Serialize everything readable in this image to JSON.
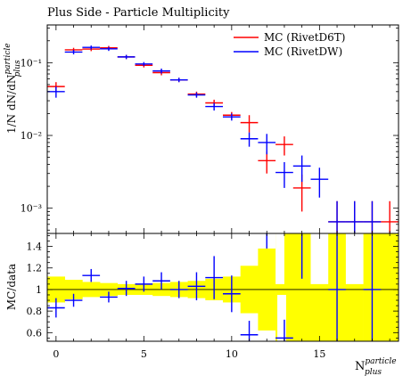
{
  "chart_data": {
    "type": "scatter",
    "title": "Plus Side - Particle Multiplicity",
    "xlabel_main": "N",
    "xlabel_sup": "particle",
    "xlabel_sub": "plus",
    "ylabel_top": "1/N dN/dN",
    "ylabel_top_sup": "particle",
    "ylabel_top_sub": "plus",
    "ylabel_bottom": "MC/data",
    "x_ticks": [
      "0",
      "5",
      "10",
      "15"
    ],
    "y_ticks_top": [
      "10⁻¹",
      "10⁻²",
      "10⁻³"
    ],
    "y_ticks_bottom": [
      "1.4",
      "1.2",
      "1",
      "0.8",
      "0.6"
    ],
    "top_ylim": [
      0.00045,
      0.33
    ],
    "bottom_ylim": [
      0.52,
      1.52
    ],
    "xlim": [
      -0.5,
      19.5
    ],
    "log_y_top": true,
    "legend_position": "top-right",
    "legend": [
      {
        "label": "MC (RivetD6T)",
        "color": "#ff0000"
      },
      {
        "label": "MC (RivetDW)",
        "color": "#0000ff"
      }
    ],
    "series": [
      {
        "name": "MC (RivetD6T)",
        "color": "#ff0000",
        "x": [
          0,
          1,
          2,
          3,
          4,
          5,
          6,
          7,
          8,
          9,
          10,
          11,
          12,
          13,
          14,
          16,
          17,
          18,
          19
        ],
        "y": [
          0.047,
          0.15,
          0.154,
          0.16,
          0.12,
          0.092,
          0.073,
          0.058,
          0.037,
          0.028,
          0.019,
          0.015,
          0.0045,
          0.0075,
          0.0019,
          0.00065,
          0.00065,
          0.00065,
          0.00065
        ],
        "err_low": [
          0.007,
          0.01,
          0.01,
          0.01,
          0.008,
          0.006,
          0.006,
          0.004,
          0.003,
          0.003,
          0.002,
          0.004,
          0.0015,
          0.0022,
          0.001,
          0.0002,
          0.0002,
          0.0002,
          0.0002
        ],
        "err_high": [
          0.007,
          0.01,
          0.01,
          0.01,
          0.008,
          0.006,
          0.006,
          0.004,
          0.003,
          0.003,
          0.002,
          0.004,
          0.0015,
          0.0022,
          0.001,
          0.0006,
          0.0006,
          0.0006,
          0.0006
        ]
      },
      {
        "name": "MC (RivetDW)",
        "color": "#0000ff",
        "x": [
          0,
          1,
          2,
          3,
          4,
          5,
          6,
          7,
          8,
          9,
          10,
          11,
          12,
          13,
          14,
          15,
          16,
          17,
          18
        ],
        "y": [
          0.04,
          0.14,
          0.162,
          0.155,
          0.12,
          0.096,
          0.077,
          0.058,
          0.036,
          0.025,
          0.018,
          0.009,
          0.008,
          0.0031,
          0.0038,
          0.0025,
          0.00065,
          0.00065,
          0.00065
        ],
        "err_low": [
          0.007,
          0.01,
          0.01,
          0.01,
          0.008,
          0.006,
          0.006,
          0.004,
          0.003,
          0.003,
          0.002,
          0.002,
          0.0025,
          0.0012,
          0.0015,
          0.0011,
          0.0002,
          0.0002,
          0.0002
        ],
        "err_high": [
          0.007,
          0.01,
          0.01,
          0.01,
          0.008,
          0.006,
          0.006,
          0.004,
          0.003,
          0.003,
          0.002,
          0.002,
          0.0025,
          0.0012,
          0.0015,
          0.0011,
          0.0006,
          0.0006,
          0.0006
        ]
      }
    ],
    "ratio": {
      "name": "MC (RivetDW)",
      "color": "#0000ff",
      "x": [
        0,
        1,
        2,
        3,
        4,
        5,
        6,
        7,
        8,
        9,
        10,
        11,
        13,
        16,
        18
      ],
      "y": [
        0.83,
        0.9,
        1.13,
        0.93,
        1.01,
        1.05,
        1.08,
        1.0,
        1.03,
        1.11,
        0.96,
        0.58,
        0.55,
        1.0,
        1.0
      ],
      "err": [
        0.09,
        0.06,
        0.06,
        0.05,
        0.07,
        0.07,
        0.08,
        0.08,
        0.13,
        0.2,
        0.17,
        0.13,
        0.17,
        0.6,
        0.6
      ]
    },
    "band": {
      "color": "#ffff00",
      "x": [
        -0.5,
        0.5,
        1.5,
        2.5,
        3.5,
        4.5,
        5.5,
        6.5,
        7.5,
        8.5,
        9.5,
        10.5,
        11.5,
        12.5,
        13.5,
        14.5,
        15.5,
        16.5,
        17.5,
        18.5,
        19.5
      ],
      "low": [
        0.88,
        0.91,
        0.93,
        0.94,
        0.95,
        0.95,
        0.94,
        0.93,
        0.92,
        0.9,
        0.88,
        0.78,
        0.62,
        0.52,
        0.52,
        0.52,
        0.52,
        0.52,
        0.52,
        0.52,
        0.52
      ],
      "high": [
        1.12,
        1.09,
        1.07,
        1.06,
        1.05,
        1.05,
        1.06,
        1.07,
        1.08,
        1.1,
        1.12,
        1.22,
        1.38,
        1.52,
        1.52,
        1.52,
        1.52,
        1.52,
        1.52,
        1.52,
        1.52
      ]
    }
  }
}
